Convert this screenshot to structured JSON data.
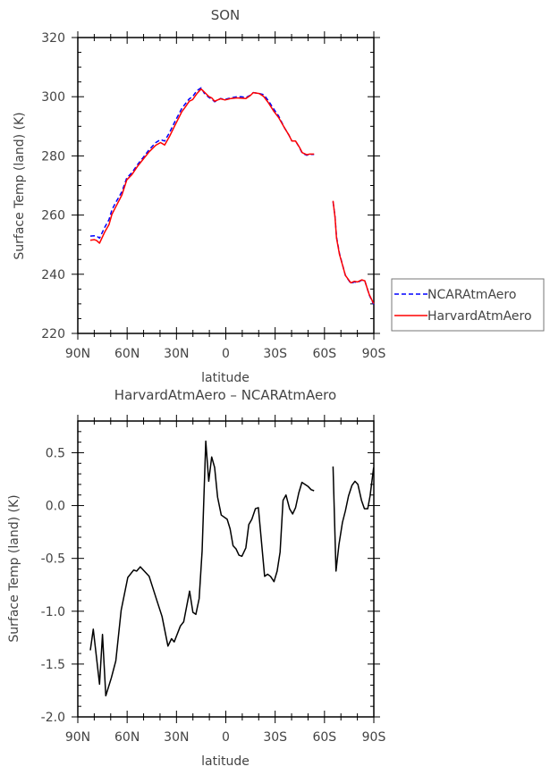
{
  "chart_data": [
    {
      "type": "line",
      "title": "SON",
      "xlabel": "latitude",
      "ylabel": "Surface Temp (land) (K)",
      "xlim": [
        90,
        -90
      ],
      "ylim": [
        220,
        320
      ],
      "xticks": [
        90,
        60,
        30,
        0,
        -30,
        -60,
        -90
      ],
      "xtick_labels": [
        "90N",
        "60N",
        "30N",
        "0",
        "30S",
        "60S",
        "90S"
      ],
      "yticks": [
        220,
        240,
        260,
        280,
        300,
        320
      ],
      "ytick_labels": [
        "220",
        "240",
        "260",
        "280",
        "300",
        "320"
      ],
      "legend_position": "right-outside",
      "series": [
        {
          "name": "NCARAtmAero",
          "color": "#0000ff",
          "dash": "dashed",
          "segments": [
            [
              [
                82.4,
                252.9
              ],
              [
                80,
                253
              ],
              [
                78.6,
                252.9
              ],
              [
                76.8,
                252.2
              ],
              [
                73.7,
                255.8
              ],
              [
                71,
                258.5
              ],
              [
                69.2,
                261.8
              ],
              [
                66.9,
                264.3
              ],
              [
                63.2,
                267.9
              ],
              [
                60.2,
                272.6
              ],
              [
                57.1,
                274.3
              ],
              [
                53.8,
                277
              ],
              [
                50.2,
                279.5
              ],
              [
                46.6,
                282.1
              ],
              [
                42.6,
                284.5
              ],
              [
                39.7,
                285.5
              ],
              [
                37.2,
                285
              ],
              [
                34.3,
                287.8
              ],
              [
                31.2,
                291.3
              ],
              [
                26.7,
                296.1
              ],
              [
                24.9,
                297.4
              ],
              [
                22.2,
                299.3
              ],
              [
                20.2,
                300
              ],
              [
                17.7,
                302
              ],
              [
                15,
                303
              ],
              [
                13.1,
                301.2
              ],
              [
                10.4,
                299.8
              ],
              [
                8.6,
                299.2
              ],
              [
                6.8,
                298.3
              ],
              [
                3.2,
                299.4
              ],
              [
                0.5,
                299.1
              ],
              [
                -3.1,
                299.6
              ],
              [
                -6.7,
                300
              ],
              [
                -9.5,
                300
              ],
              [
                -12.2,
                299.7
              ],
              [
                -14.9,
                300.5
              ],
              [
                -16.7,
                301.4
              ],
              [
                -20.3,
                301.1
              ],
              [
                -23,
                300.7
              ],
              [
                -25.7,
                298.8
              ],
              [
                -29.3,
                295.7
              ],
              [
                -32.1,
                293.5
              ],
              [
                -35.7,
                289.5
              ],
              [
                -38.4,
                287
              ],
              [
                -40.2,
                285
              ],
              [
                -42.4,
                285
              ],
              [
                -44.7,
                282.9
              ],
              [
                -46.5,
                280.9
              ],
              [
                -49.2,
                280.2
              ],
              [
                -51,
                280.5
              ],
              [
                -53.7,
                280.5
              ]
            ],
            [
              [
                -65.2,
                264.5
              ],
              [
                -66.4,
                259.6
              ],
              [
                -67.3,
                252.6
              ],
              [
                -69.1,
                247
              ],
              [
                -70.9,
                243.3
              ],
              [
                -72.7,
                239.6
              ],
              [
                -76,
                236.9
              ],
              [
                -78.2,
                237.4
              ],
              [
                -80,
                237.2
              ],
              [
                -82.7,
                238
              ],
              [
                -84.5,
                237.8
              ],
              [
                -87.2,
                233
              ],
              [
                -89.9,
                229.8
              ]
            ]
          ]
        },
        {
          "name": "HarvardAtmAero",
          "color": "#ff0000",
          "dash": "solid",
          "segments": [
            [
              [
                82.4,
                251.5
              ],
              [
                80,
                251.7
              ],
              [
                78.6,
                251.4
              ],
              [
                76.8,
                250.5
              ],
              [
                73.7,
                254.2
              ],
              [
                71,
                256.8
              ],
              [
                69.2,
                260.3
              ],
              [
                66.9,
                262.8
              ],
              [
                63.2,
                266.8
              ],
              [
                60.2,
                271.9
              ],
              [
                57.1,
                273.7
              ],
              [
                53.8,
                276.4
              ],
              [
                50.2,
                278.9
              ],
              [
                46.6,
                281.4
              ],
              [
                42.6,
                283.6
              ],
              [
                39.7,
                284.5
              ],
              [
                37.2,
                283.7
              ],
              [
                34.3,
                286.5
              ],
              [
                31.2,
                290
              ],
              [
                26.7,
                295
              ],
              [
                24.9,
                296.3
              ],
              [
                22.2,
                298.5
              ],
              [
                20.2,
                299
              ],
              [
                17.7,
                301
              ],
              [
                15,
                302.6
              ],
              [
                13.1,
                301.6
              ],
              [
                10.4,
                300.1
              ],
              [
                8.6,
                299.6
              ],
              [
                6.8,
                298.5
              ],
              [
                3.2,
                299.3
              ],
              [
                0.5,
                298.9
              ],
              [
                -3.1,
                299.4
              ],
              [
                -6.7,
                299.6
              ],
              [
                -9.5,
                299.5
              ],
              [
                -12.2,
                299.4
              ],
              [
                -14.9,
                300.4
              ],
              [
                -16.7,
                301.4
              ],
              [
                -20.3,
                301.1
              ],
              [
                -23,
                300.1
              ],
              [
                -25.7,
                298.1
              ],
              [
                -29.3,
                295
              ],
              [
                -32.1,
                293
              ],
              [
                -35.7,
                289.5
              ],
              [
                -38.4,
                287
              ],
              [
                -40.2,
                285
              ],
              [
                -42.4,
                285
              ],
              [
                -44.7,
                283
              ],
              [
                -46.5,
                281.1
              ],
              [
                -49.2,
                280.4
              ],
              [
                -51,
                280.6
              ],
              [
                -53.7,
                280.6
              ]
            ],
            [
              [
                -65.2,
                264.8
              ],
              [
                -66.4,
                259.3
              ],
              [
                -67.3,
                252.2
              ],
              [
                -69.1,
                246.7
              ],
              [
                -70.9,
                243.2
              ],
              [
                -72.7,
                239.6
              ],
              [
                -76,
                237.1
              ],
              [
                -78.2,
                237.6
              ],
              [
                -80,
                237.4
              ],
              [
                -82.7,
                238.1
              ],
              [
                -84.5,
                237.8
              ],
              [
                -87.2,
                233.1
              ],
              [
                -89.9,
                230.1
              ]
            ]
          ]
        }
      ]
    },
    {
      "type": "line",
      "title": "HarvardAtmAero – NCARAtmAero",
      "xlabel": "latitude",
      "ylabel": "Surface Temp (land) (K)",
      "xlim": [
        90,
        -90
      ],
      "ylim": [
        -2.0,
        0.8
      ],
      "xticks": [
        90,
        60,
        30,
        0,
        -30,
        -60,
        -90
      ],
      "xtick_labels": [
        "90N",
        "60N",
        "30N",
        "0",
        "30S",
        "60S",
        "90S"
      ],
      "yticks": [
        -2.0,
        -1.5,
        -1.0,
        -0.5,
        0.0,
        0.5
      ],
      "ytick_labels": [
        "-2.0",
        "-1.5",
        "-1.0",
        "-0.5",
        "0.0",
        "0.5"
      ],
      "series": [
        {
          "name": "HarvardAtmAero - NCARAtmAero",
          "color": "#000000",
          "dash": "solid",
          "segments": [
            [
              [
                82.4,
                -1.37
              ],
              [
                80.6,
                -1.17
              ],
              [
                76.8,
                -1.69
              ],
              [
                75,
                -1.22
              ],
              [
                73,
                -1.8
              ],
              [
                69.6,
                -1.63
              ],
              [
                66.9,
                -1.47
              ],
              [
                63.6,
                -0.99
              ],
              [
                59.6,
                -0.68
              ],
              [
                56,
                -0.61
              ],
              [
                54.2,
                -0.62
              ],
              [
                52,
                -0.58
              ],
              [
                46.6,
                -0.67
              ],
              [
                42.1,
                -0.89
              ],
              [
                38.8,
                -1.05
              ],
              [
                35.2,
                -1.33
              ],
              [
                33,
                -1.26
              ],
              [
                31.4,
                -1.29
              ],
              [
                27.6,
                -1.14
              ],
              [
                25.6,
                -1.1
              ],
              [
                22,
                -0.81
              ],
              [
                20,
                -1.01
              ],
              [
                18.2,
                -1.03
              ],
              [
                16.2,
                -0.88
              ],
              [
                14.4,
                -0.43
              ],
              [
                12.2,
                0.61
              ],
              [
                10.4,
                0.23
              ],
              [
                8.6,
                0.46
              ],
              [
                6.8,
                0.36
              ],
              [
                5,
                0.08
              ],
              [
                2.8,
                -0.09
              ],
              [
                -0.8,
                -0.13
              ],
              [
                -2.6,
                -0.22
              ],
              [
                -4.4,
                -0.38
              ],
              [
                -6.2,
                -0.41
              ],
              [
                -8,
                -0.47
              ],
              [
                -9.8,
                -0.48
              ],
              [
                -12.2,
                -0.4
              ],
              [
                -14,
                -0.18
              ],
              [
                -15.8,
                -0.13
              ],
              [
                -18,
                -0.03
              ],
              [
                -19.8,
                -0.02
              ],
              [
                -23.6,
                -0.67
              ],
              [
                -25.4,
                -0.65
              ],
              [
                -27.2,
                -0.67
              ],
              [
                -29.3,
                -0.72
              ],
              [
                -31.2,
                -0.62
              ],
              [
                -33,
                -0.44
              ],
              [
                -34.8,
                0.05
              ],
              [
                -36.6,
                0.1
              ],
              [
                -38.8,
                -0.03
              ],
              [
                -40.6,
                -0.08
              ],
              [
                -42.4,
                -0.02
              ],
              [
                -44.4,
                0.12
              ],
              [
                -46.3,
                0.22
              ],
              [
                -50.1,
                0.18
              ],
              [
                -51.9,
                0.15
              ],
              [
                -53.7,
                0.14
              ]
            ],
            [
              [
                -65.2,
                0.37
              ],
              [
                -67,
                -0.62
              ],
              [
                -68.8,
                -0.37
              ],
              [
                -70.9,
                -0.16
              ],
              [
                -72.7,
                -0.05
              ],
              [
                -74.6,
                0.09
              ],
              [
                -76.7,
                0.19
              ],
              [
                -78.5,
                0.23
              ],
              [
                -80.3,
                0.2
              ],
              [
                -82.5,
                0.05
              ],
              [
                -84.3,
                -0.03
              ],
              [
                -86.3,
                -0.03
              ],
              [
                -87.7,
                0.09
              ],
              [
                -89.9,
                0.36
              ]
            ]
          ]
        }
      ]
    }
  ]
}
